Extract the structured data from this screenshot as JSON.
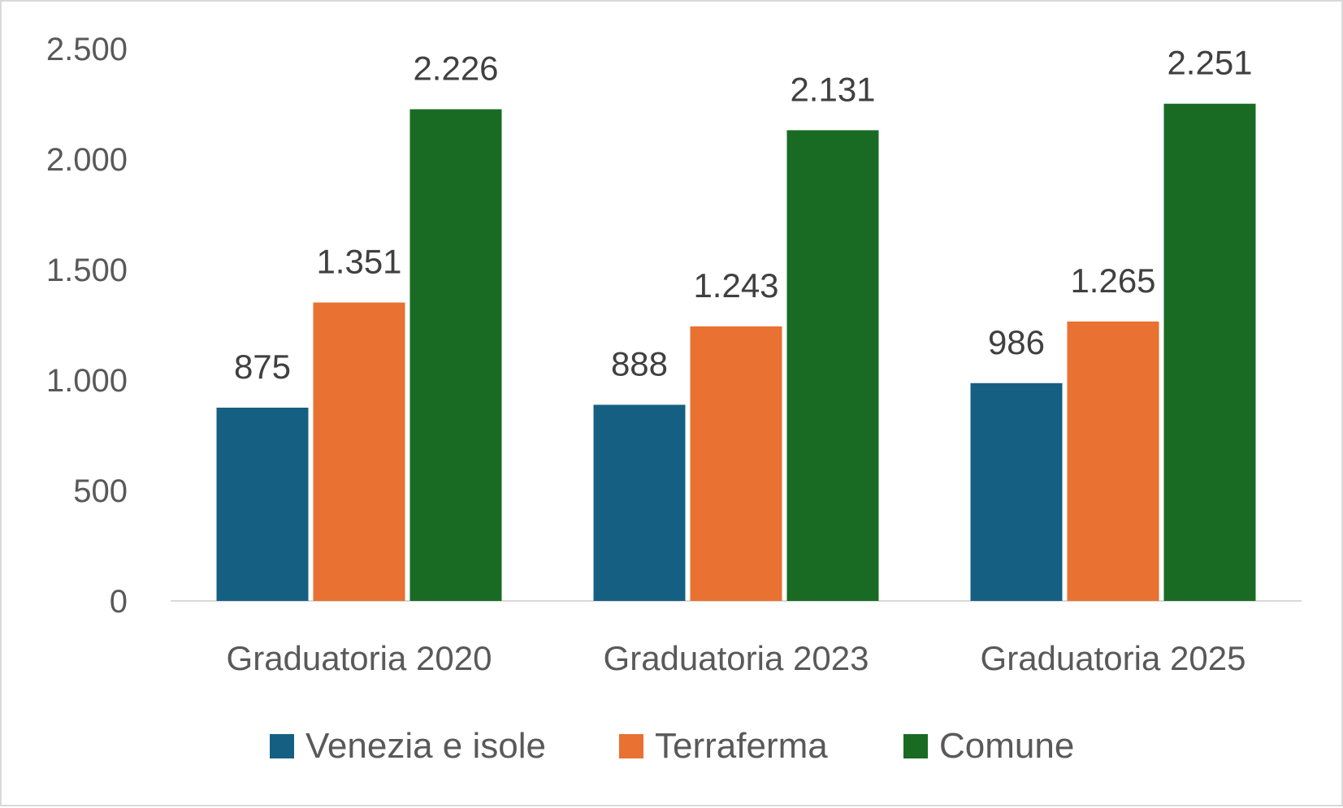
{
  "chart_data": {
    "type": "bar",
    "title": "",
    "xlabel": "",
    "ylabel": "",
    "categories": [
      "Graduatoria 2020",
      "Graduatoria 2023",
      "Graduatoria 2025"
    ],
    "series": [
      {
        "name": "Venezia e isole",
        "values": [
          875,
          888,
          986
        ],
        "labels": [
          "875",
          "888",
          "986"
        ],
        "color": "#156082"
      },
      {
        "name": "Terraferma",
        "values": [
          1351,
          1243,
          1265
        ],
        "labels": [
          "1.351",
          "1.243",
          "1.265"
        ],
        "color": "#E97132"
      },
      {
        "name": "Comune",
        "values": [
          2226,
          2131,
          2251
        ],
        "labels": [
          "2.226",
          "2.131",
          "2.251"
        ],
        "color": "#196B24"
      }
    ],
    "ylim": [
      0,
      2500
    ],
    "yticks": [
      0,
      500,
      1000,
      1500,
      2000,
      2500
    ],
    "ytick_labels": [
      "0",
      "500",
      "1.000",
      "1.500",
      "2.000",
      "2.500"
    ],
    "grid": false,
    "legend": "bottom"
  }
}
